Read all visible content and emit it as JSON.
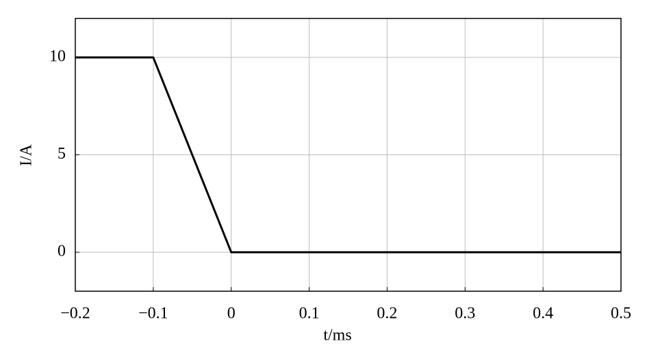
{
  "chart_data": {
    "type": "line",
    "x_label": "t/ms",
    "y_label": "I/A",
    "x": [
      -0.2,
      -0.1,
      0,
      0.5
    ],
    "series": [
      {
        "name": "I",
        "color": "#000000",
        "values": [
          10,
          10,
          0,
          0
        ]
      }
    ],
    "xlim": [
      -0.2,
      0.5
    ],
    "xticks": [
      {
        "value": -0.2,
        "label": "−0.2"
      },
      {
        "value": -0.1,
        "label": "−0.1"
      },
      0,
      0.1,
      0.2,
      0.3,
      0.4,
      0.5
    ],
    "ylim": [
      -2,
      12
    ],
    "yticks": [
      0,
      5,
      10
    ],
    "grid": true
  }
}
